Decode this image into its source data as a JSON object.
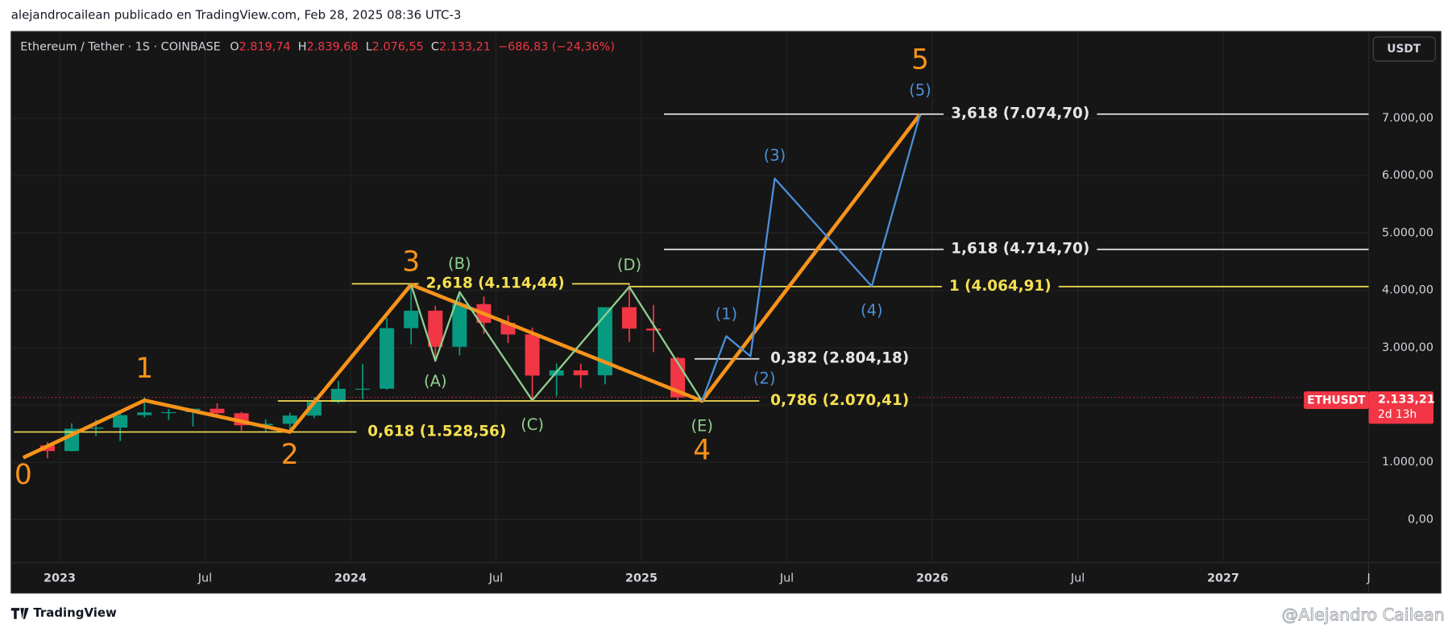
{
  "header": {
    "attribution": "alejandrocailean publicado en TradingView.com, Feb 28, 2025 08:36 UTC-3",
    "symbol": "Ethereum / Tether · 1S · COINBASE",
    "ohlc": [
      {
        "key": "O",
        "value": "2.819,74"
      },
      {
        "key": "H",
        "value": "2.839,68"
      },
      {
        "key": "L",
        "value": "2.076,55"
      },
      {
        "key": "C",
        "value": "2.133,21"
      }
    ],
    "change": "−686,83 (−24,36%)",
    "currency": "USDT"
  },
  "footer": {
    "brand": "TradingView",
    "watermark": "@Alejandro Cailean"
  },
  "chart_data": {
    "type": "candlestick",
    "x": [
      "2022-12",
      "2023-01",
      "2023-02",
      "2023-03",
      "2023-04",
      "2023-05",
      "2023-06",
      "2023-07",
      "2023-08",
      "2023-09",
      "2023-10",
      "2023-11",
      "2023-12",
      "2024-01",
      "2024-02",
      "2024-03",
      "2024-04",
      "2024-05",
      "2024-06",
      "2024-07",
      "2024-08",
      "2024-09",
      "2024-10",
      "2024-11",
      "2024-12",
      "2025-01",
      "2025-02"
    ],
    "open": [
      1295,
      1196,
      1585,
      1605,
      1822,
      1870,
      1874,
      1934,
      1856,
      1645,
      1671,
      1815,
      2052,
      2282,
      2283,
      3340,
      3645,
      3015,
      3760,
      3433,
      3230,
      2513,
      2603,
      2518,
      3705,
      3332,
      2819.74
    ],
    "high": [
      1350,
      1680,
      1745,
      1850,
      2140,
      1930,
      1935,
      2030,
      1880,
      1750,
      1865,
      2140,
      2420,
      2715,
      3520,
      4095,
      3730,
      3975,
      3890,
      3560,
      3350,
      2725,
      2720,
      3690,
      4110,
      3745,
      2839.68
    ],
    "low": [
      1070,
      1190,
      1460,
      1370,
      1785,
      1740,
      1625,
      1825,
      1550,
      1530,
      1520,
      1770,
      2030,
      2100,
      2265,
      3055,
      2810,
      2865,
      3240,
      3080,
      2110,
      2150,
      2300,
      2360,
      3100,
      2920,
      2076.55
    ],
    "close": [
      1196,
      1585,
      1605,
      1822,
      1870,
      1874,
      1934,
      1856,
      1645,
      1671,
      1815,
      2052,
      2282,
      2283,
      3340,
      3645,
      3015,
      3760,
      3433,
      3230,
      2513,
      2603,
      2518,
      3705,
      3332,
      3300,
      2133.21
    ],
    "up_color": "#089981",
    "down_color": "#f23645",
    "xlim": [
      "2022-11",
      "2027-07"
    ],
    "xticks": [
      {
        "value": "2023-01",
        "label": "2023"
      },
      {
        "value": "2023-07",
        "label": "Jul"
      },
      {
        "value": "2024-01",
        "label": "2024"
      },
      {
        "value": "2024-07",
        "label": "Jul"
      },
      {
        "value": "2025-01",
        "label": "2025"
      },
      {
        "value": "2025-07",
        "label": "Jul"
      },
      {
        "value": "2026-01",
        "label": "2026"
      },
      {
        "value": "2026-07",
        "label": "Jul"
      },
      {
        "value": "2027-01",
        "label": "2027"
      },
      {
        "value": "2027-07",
        "label": "J"
      }
    ],
    "ylim": [
      -750,
      8500
    ],
    "yticks": [
      {
        "value": 0,
        "label": "0,00"
      },
      {
        "value": 1000,
        "label": "1.000,00"
      },
      {
        "value": 2000,
        "label": "2.000,00"
      },
      {
        "value": 3000,
        "label": "3.000,00"
      },
      {
        "value": 4000,
        "label": "4.000,00"
      },
      {
        "value": 5000,
        "label": "5.000,00"
      },
      {
        "value": 6000,
        "label": "6.000,00"
      },
      {
        "value": 7000,
        "label": "7.000,00"
      }
    ],
    "grid": true,
    "last_price": {
      "value": 2133.21,
      "label": "2.133,21",
      "symbol": "ETHUSDT",
      "countdown": "2d 13h"
    },
    "fib_levels": [
      {
        "value": 7074.7,
        "label": "3,618 (7.074,70)",
        "color": "#e6e6e6"
      },
      {
        "value": 4714.7,
        "label": "1,618 (4.714,70)",
        "color": "#e6e6e6"
      },
      {
        "value": 4064.91,
        "label": "1 (4.064,91)",
        "color": "#f5e050"
      },
      {
        "value": 4114.44,
        "label": "2,618 (4.114,44)",
        "color": "#f5e050"
      },
      {
        "value": 2804.18,
        "label": "0,382 (2.804,18)",
        "color": "#e6e6e6"
      },
      {
        "value": 2070.41,
        "label": "0,786 (2.070,41)",
        "color": "#f5e050"
      },
      {
        "value": 1528.56,
        "label": "0,618 (1.528,56)",
        "color": "#f5e050"
      }
    ],
    "waves": [
      {
        "color": "#f7931a",
        "x": [
          "2022-11",
          "2023-04",
          "2023-10",
          "2024-03",
          "2025-03",
          "2025-12"
        ],
        "values": [
          1080,
          2080,
          1530,
          4100,
          2070,
          7075
        ],
        "labels": [
          "0",
          "1",
          "2",
          "3",
          "4",
          "5"
        ]
      },
      {
        "color": "#8fcf8f",
        "x": [
          "2024-03",
          "2024-04",
          "2024-05",
          "2024-08",
          "2024-12",
          "2025-03"
        ],
        "values": [
          4100,
          2770,
          3970,
          2080,
          4060,
          2070
        ],
        "labels": [
          null,
          "(A)",
          "(B)",
          "(C)",
          "(D)",
          "(E)"
        ]
      },
      {
        "color": "#4a8fd9",
        "x": [
          "2025-03",
          "2025-04",
          "2025-05",
          "2025-06",
          "2025-10",
          "2025-12"
        ],
        "values": [
          2070,
          3200,
          2850,
          5950,
          4070,
          7075
        ],
        "labels": [
          null,
          "(1)",
          "(2)",
          "(3)",
          "(4)",
          "(5)"
        ]
      }
    ]
  }
}
